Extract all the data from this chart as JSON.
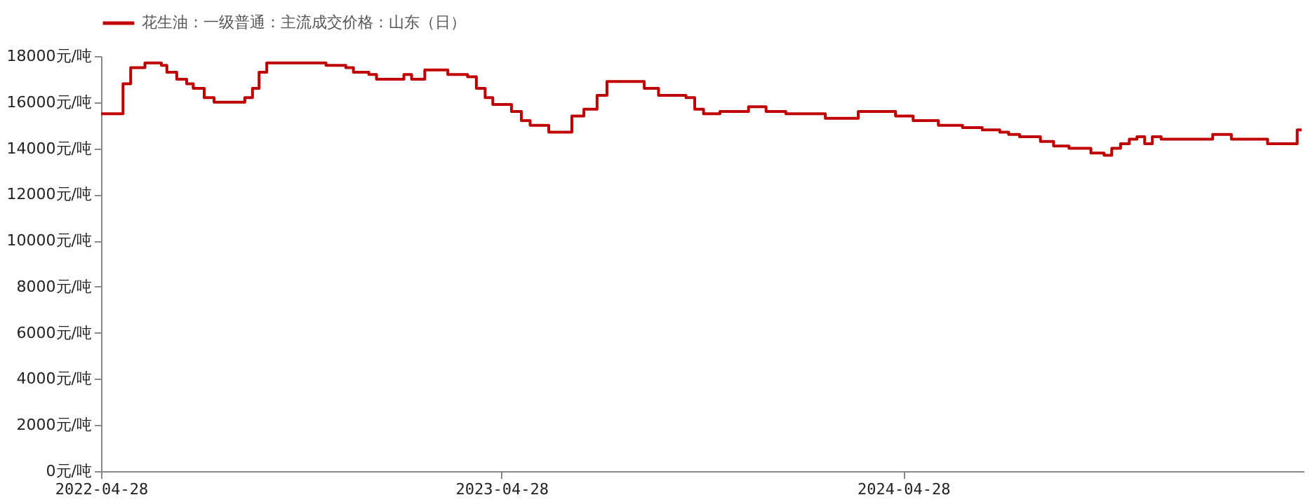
{
  "chart_data": {
    "type": "step",
    "legend": "top",
    "xlim": [
      "2022-04-28",
      "2025-04-28"
    ],
    "xticks": [
      {
        "value": "2022-04-28",
        "label": "2022-04-28"
      },
      {
        "value": "2023-04-28",
        "label": "2023-04-28"
      },
      {
        "value": "2024-04-28",
        "label": "2024-04-28"
      }
    ],
    "ylim": [
      0,
      18000
    ],
    "yticks": [
      {
        "value": 0,
        "label": "0元/吨"
      },
      {
        "value": 2000,
        "label": "2000元/吨"
      },
      {
        "value": 4000,
        "label": "4000元/吨"
      },
      {
        "value": 6000,
        "label": "6000元/吨"
      },
      {
        "value": 8000,
        "label": "8000元/吨"
      },
      {
        "value": 10000,
        "label": "10000元/吨"
      },
      {
        "value": 12000,
        "label": "12000元/吨"
      },
      {
        "value": 14000,
        "label": "14000元/吨"
      },
      {
        "value": 16000,
        "label": "16000元/吨"
      },
      {
        "value": 18000,
        "label": "18000元/吨"
      }
    ],
    "x": [
      "2022-04-28",
      "2022-05-13",
      "2022-05-18",
      "2022-05-25",
      "2022-06-07",
      "2022-06-22",
      "2022-06-27",
      "2022-07-06",
      "2022-07-15",
      "2022-07-21",
      "2022-07-31",
      "2022-08-09",
      "2022-09-06",
      "2022-09-13",
      "2022-09-19",
      "2022-09-26",
      "2022-11-19",
      "2022-12-07",
      "2022-12-14",
      "2022-12-28",
      "2023-01-04",
      "2023-01-29",
      "2023-02-05",
      "2023-02-17",
      "2023-03-10",
      "2023-03-28",
      "2023-04-05",
      "2023-04-13",
      "2023-04-20",
      "2023-04-27",
      "2023-05-07",
      "2023-05-16",
      "2023-05-24",
      "2023-06-10",
      "2023-07-01",
      "2023-07-12",
      "2023-07-24",
      "2023-08-02",
      "2023-09-05",
      "2023-09-18",
      "2023-10-13",
      "2023-10-21",
      "2023-10-29",
      "2023-11-13",
      "2023-12-09",
      "2023-12-25",
      "2024-01-12",
      "2024-02-17",
      "2024-03-18",
      "2024-04-21",
      "2024-05-07",
      "2024-05-30",
      "2024-06-21",
      "2024-07-09",
      "2024-07-25",
      "2024-08-02",
      "2024-08-12",
      "2024-08-31",
      "2024-09-12",
      "2024-09-26",
      "2024-10-16",
      "2024-10-28",
      "2024-11-04",
      "2024-11-12",
      "2024-11-20",
      "2024-11-27",
      "2024-12-04",
      "2024-12-11",
      "2024-12-19",
      "2025-02-04",
      "2025-02-21",
      "2025-03-26",
      "2025-04-22",
      "2025-04-26"
    ],
    "series": [
      {
        "name": "花生油：一级普通：主流成交价格：山东（日）",
        "color": "#c00000",
        "values": [
          15500,
          15500,
          16800,
          17500,
          17700,
          17600,
          17300,
          17000,
          16800,
          16600,
          16200,
          16000,
          16200,
          16600,
          17300,
          17700,
          17600,
          17500,
          17300,
          17200,
          17000,
          17200,
          17000,
          17400,
          17200,
          17100,
          16600,
          16200,
          15900,
          15900,
          15600,
          15200,
          15000,
          14700,
          15400,
          15700,
          16300,
          16900,
          16600,
          16300,
          16200,
          15700,
          15500,
          15600,
          15800,
          15600,
          15500,
          15300,
          15600,
          15400,
          15200,
          15000,
          14900,
          14800,
          14700,
          14600,
          14500,
          14300,
          14100,
          14000,
          13800,
          13700,
          14000,
          14200,
          14400,
          14500,
          14200,
          14500,
          14400,
          14600,
          14400,
          14200,
          14800,
          14800
        ]
      }
    ]
  }
}
